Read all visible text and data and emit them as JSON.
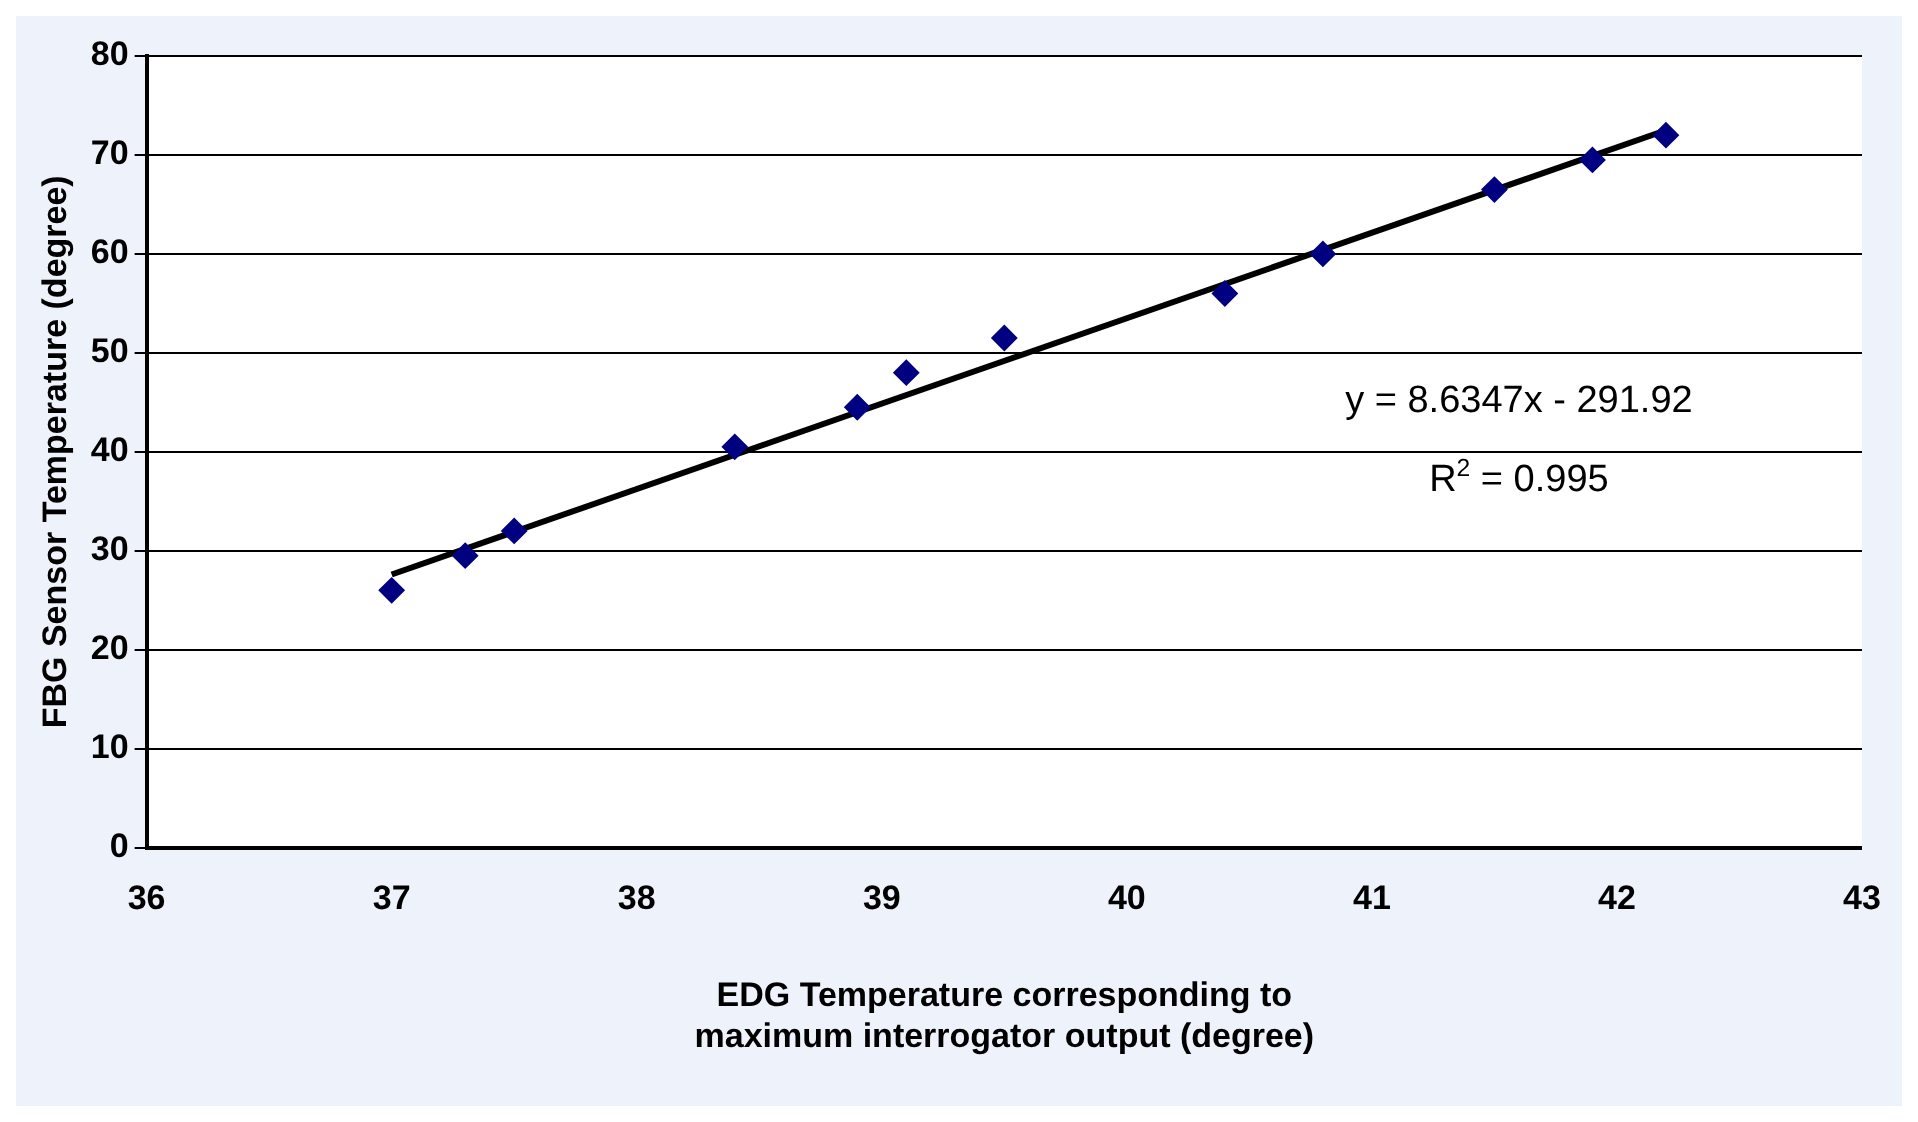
{
  "chart_data": {
    "type": "scatter",
    "xlabel": "EDG Temperature corresponding to maximum interrogator output (degree)",
    "ylabel": "FBG Sensor Temperature (degree)",
    "xlim": [
      36,
      43
    ],
    "xticks": [
      36,
      37,
      38,
      39,
      40,
      41,
      42,
      43
    ],
    "ylim": [
      0,
      80
    ],
    "yticks": [
      0,
      10,
      20,
      30,
      40,
      50,
      60,
      70,
      80
    ],
    "grid": "y",
    "legend": false,
    "marker": "diamond",
    "series": [
      {
        "type": "scatter",
        "color": "#000080",
        "x": [
          37.0,
          37.3,
          37.5,
          38.4,
          38.9,
          39.1,
          39.5,
          40.4,
          40.8,
          41.5,
          41.9,
          42.2
        ],
        "values": [
          26,
          29.5,
          32,
          40.5,
          44.5,
          48,
          51.5,
          56,
          60,
          66.5,
          69.5,
          72
        ]
      },
      {
        "type": "line",
        "color": "#000000",
        "x": [
          37,
          42.2
        ],
        "values": [
          27.6,
          72.5
        ],
        "marker": "none"
      }
    ],
    "annotations": [
      "y = 8.6347x - 291.92",
      "R$^{2}$ = 0.995"
    ]
  }
}
